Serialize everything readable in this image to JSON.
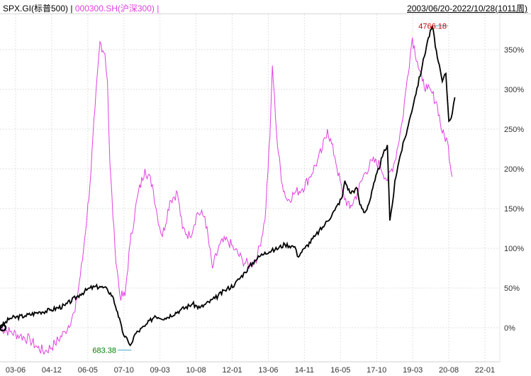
{
  "legend": {
    "series1": "SPX.GI(标普500)",
    "sep": "|",
    "series2": "000300.SH(沪深300)",
    "sep2": "|"
  },
  "range_label": "2003/06/20-2022/10/28(1011周)",
  "chart_data": {
    "type": "line",
    "x_tick_labels": [
      "03-06",
      "04-12",
      "06-05",
      "07-10",
      "09-03",
      "10-08",
      "12-01",
      "13-06",
      "14-11",
      "16-05",
      "17-10",
      "19-03",
      "20-08",
      "22-01"
    ],
    "y_tick_labels": [
      "0%",
      "50%",
      "100%",
      "150%",
      "200%",
      "250%",
      "300%",
      "350%"
    ],
    "ylim": [
      -30,
      380
    ],
    "grid": true,
    "colors": {
      "spx": "#000000",
      "hs300": "#e040e0",
      "max_label": "#cc0000",
      "min_label": "#008000",
      "leader": "#4aa8c8"
    },
    "series": [
      {
        "name": "SPX.GI(标普500)",
        "points": [
          [
            0,
            0
          ],
          [
            0.02,
            12
          ],
          [
            0.05,
            15
          ],
          [
            0.08,
            20
          ],
          [
            0.1,
            22
          ],
          [
            0.13,
            28
          ],
          [
            0.16,
            42
          ],
          [
            0.18,
            50
          ],
          [
            0.2,
            52
          ],
          [
            0.215,
            48
          ],
          [
            0.225,
            40
          ],
          [
            0.235,
            20
          ],
          [
            0.245,
            -5
          ],
          [
            0.258,
            -20
          ],
          [
            0.263,
            -20
          ],
          [
            0.27,
            -8
          ],
          [
            0.29,
            2
          ],
          [
            0.31,
            15
          ],
          [
            0.33,
            12
          ],
          [
            0.36,
            22
          ],
          [
            0.385,
            30
          ],
          [
            0.4,
            25
          ],
          [
            0.43,
            37
          ],
          [
            0.45,
            47
          ],
          [
            0.47,
            55
          ],
          [
            0.49,
            70
          ],
          [
            0.51,
            85
          ],
          [
            0.53,
            95
          ],
          [
            0.55,
            98
          ],
          [
            0.57,
            105
          ],
          [
            0.59,
            102
          ],
          [
            0.595,
            90
          ],
          [
            0.61,
            100
          ],
          [
            0.63,
            115
          ],
          [
            0.65,
            130
          ],
          [
            0.67,
            148
          ],
          [
            0.685,
            165
          ],
          [
            0.69,
            185
          ],
          [
            0.7,
            170
          ],
          [
            0.715,
            175
          ],
          [
            0.72,
            155
          ],
          [
            0.73,
            145
          ],
          [
            0.74,
            160
          ],
          [
            0.75,
            185
          ],
          [
            0.765,
            215
          ],
          [
            0.775,
            230
          ],
          [
            0.78,
            135
          ],
          [
            0.785,
            155
          ],
          [
            0.79,
            185
          ],
          [
            0.8,
            215
          ],
          [
            0.815,
            250
          ],
          [
            0.83,
            290
          ],
          [
            0.845,
            330
          ],
          [
            0.855,
            360
          ],
          [
            0.865,
            380
          ],
          [
            0.875,
            340
          ],
          [
            0.885,
            310
          ],
          [
            0.892,
            320
          ],
          [
            0.898,
            260
          ],
          [
            0.905,
            270
          ],
          [
            0.91,
            290
          ]
        ]
      },
      {
        "name": "000300.SH(沪深300)",
        "points": [
          [
            0,
            0
          ],
          [
            0.02,
            -5
          ],
          [
            0.04,
            -10
          ],
          [
            0.06,
            -15
          ],
          [
            0.075,
            -25
          ],
          [
            0.09,
            -30
          ],
          [
            0.11,
            -20
          ],
          [
            0.13,
            -5
          ],
          [
            0.15,
            20
          ],
          [
            0.165,
            85
          ],
          [
            0.18,
            180
          ],
          [
            0.19,
            275
          ],
          [
            0.2,
            360
          ],
          [
            0.21,
            345
          ],
          [
            0.215,
            310
          ],
          [
            0.22,
            205
          ],
          [
            0.23,
            100
          ],
          [
            0.24,
            40
          ],
          [
            0.25,
            40
          ],
          [
            0.26,
            105
          ],
          [
            0.275,
            165
          ],
          [
            0.29,
            200
          ],
          [
            0.305,
            180
          ],
          [
            0.315,
            140
          ],
          [
            0.325,
            115
          ],
          [
            0.34,
            160
          ],
          [
            0.355,
            170
          ],
          [
            0.365,
            125
          ],
          [
            0.38,
            115
          ],
          [
            0.395,
            145
          ],
          [
            0.41,
            140
          ],
          [
            0.425,
            75
          ],
          [
            0.44,
            105
          ],
          [
            0.455,
            110
          ],
          [
            0.47,
            98
          ],
          [
            0.485,
            85
          ],
          [
            0.5,
            78
          ],
          [
            0.515,
            90
          ],
          [
            0.53,
            135
          ],
          [
            0.54,
            240
          ],
          [
            0.545,
            330
          ],
          [
            0.555,
            230
          ],
          [
            0.565,
            180
          ],
          [
            0.575,
            160
          ],
          [
            0.59,
            170
          ],
          [
            0.605,
            175
          ],
          [
            0.62,
            190
          ],
          [
            0.635,
            210
          ],
          [
            0.645,
            225
          ],
          [
            0.655,
            250
          ],
          [
            0.67,
            215
          ],
          [
            0.685,
            170
          ],
          [
            0.7,
            150
          ],
          [
            0.715,
            170
          ],
          [
            0.73,
            195
          ],
          [
            0.745,
            210
          ],
          [
            0.76,
            205
          ],
          [
            0.775,
            185
          ],
          [
            0.79,
            210
          ],
          [
            0.805,
            260
          ],
          [
            0.815,
            315
          ],
          [
            0.825,
            365
          ],
          [
            0.835,
            335
          ],
          [
            0.845,
            310
          ],
          [
            0.855,
            300
          ],
          [
            0.865,
            295
          ],
          [
            0.875,
            280
          ],
          [
            0.885,
            245
          ],
          [
            0.895,
            235
          ],
          [
            0.905,
            190
          ]
        ]
      }
    ],
    "max_label": "4766.18",
    "min_label": "683.38"
  }
}
